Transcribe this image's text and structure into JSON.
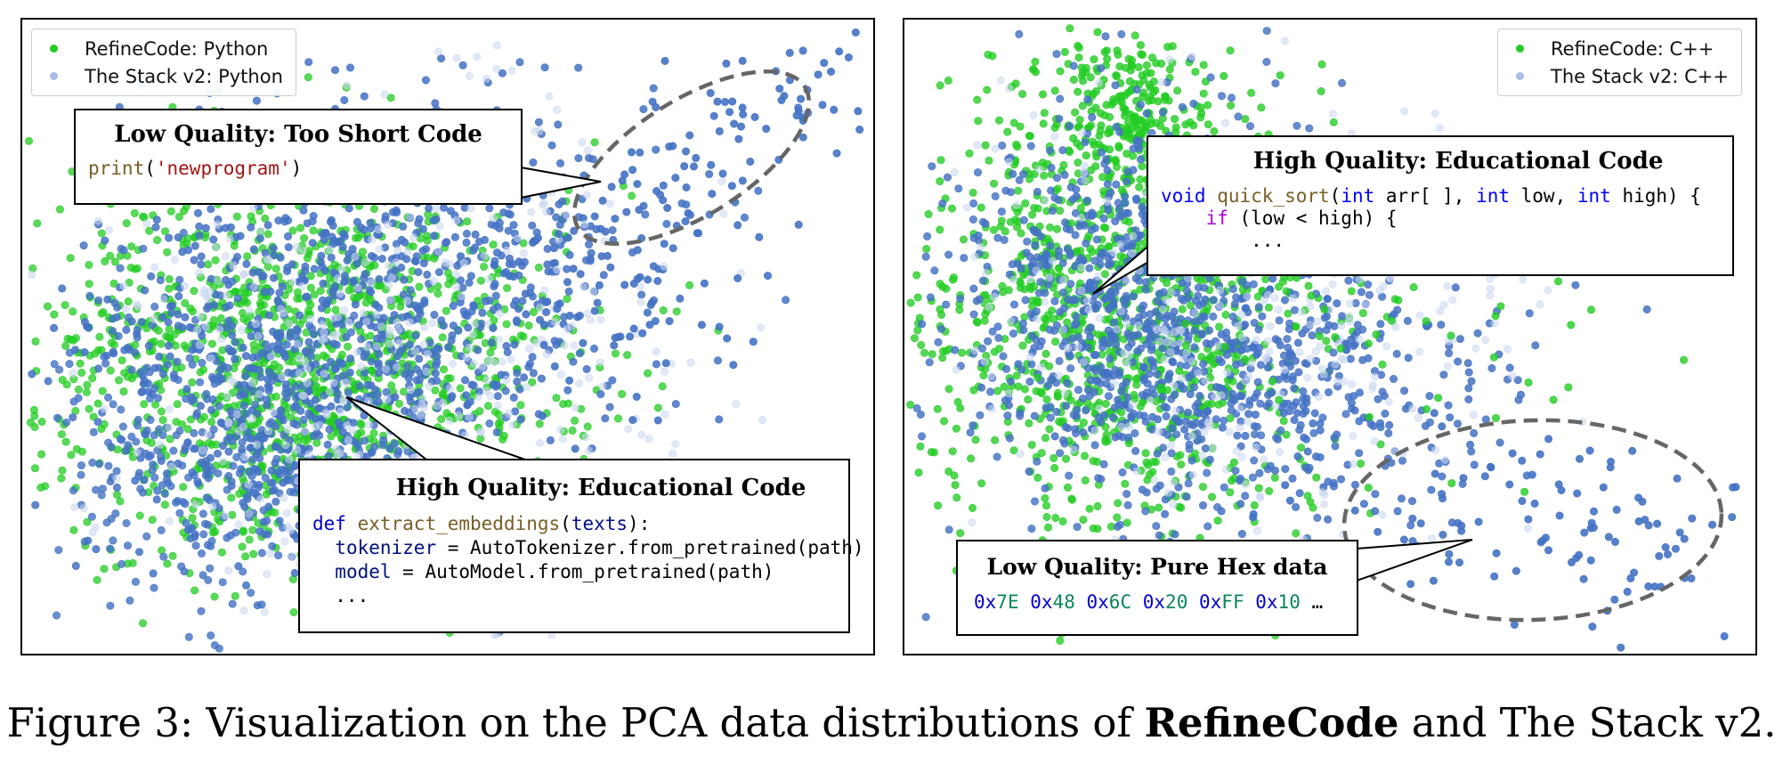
{
  "chart_data": [
    {
      "type": "scatter",
      "series": [
        {
          "name": "RefineCode: Python",
          "color": "#22cc22"
        },
        {
          "name": "The Stack v2: Python",
          "color": "#4472c4"
        }
      ],
      "annotations": [
        {
          "title": "Low Quality: Too Short Code",
          "code": "print('newprogram')"
        },
        {
          "title": "High Quality: Educational Code",
          "code_lines": [
            "def extract_embeddings(texts):",
            "  tokenizer = AutoTokenizer.from_pretrained(path)",
            "  model = AutoModel.from_pretrained(path)",
            "  ..."
          ]
        }
      ]
    },
    {
      "type": "scatter",
      "series": [
        {
          "name": "RefineCode: C++",
          "color": "#22cc22"
        },
        {
          "name": "The Stack v2: C++",
          "color": "#4472c4"
        }
      ],
      "annotations": [
        {
          "title": "High Quality: Educational Code",
          "code_lines": [
            "void quick_sort(int arr[ ], int low, int high) {",
            "    if (low < high) {",
            "        ..."
          ]
        },
        {
          "title": "Low Quality: Pure Hex data",
          "code": "0x7E 0x48 0x6C 0x20 0xFF 0x10 ..."
        }
      ]
    }
  ],
  "caption": {
    "prefix": "Figure 3: Visualization on the PCA data distributions of ",
    "bold": "RefineCode",
    "suffix": " and The Stack v2."
  }
}
